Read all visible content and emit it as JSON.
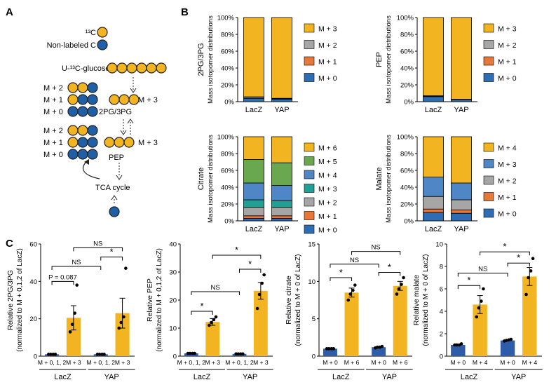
{
  "colors": {
    "yellow": "#F2B420",
    "blue": "#1F5FA6",
    "gray": "#A6A6A6",
    "orange": "#E8773A",
    "lightblue": "#4F86C6",
    "teal": "#1FA196",
    "green": "#6AA84F",
    "tile_blue": "#2E6DB4",
    "bar_blue": "#2E5CA8"
  },
  "panel_a": {
    "label": "A",
    "legend_c13": "¹³C",
    "legend_nonlabeled": "Non-labeled C",
    "glucose_label": "U-¹³C-glucose",
    "pg_label": "2PG/3PG",
    "pep_label": "PEP",
    "tca_label": "TCA cycle",
    "m2": "M + 2",
    "m1": "M + 1",
    "m0": "M + 0",
    "m3": "M + 3"
  },
  "panel_b_label": "B",
  "panel_c_label": "C",
  "stacked": [
    {
      "name": "2PG/3PG",
      "ylabel": "Mass isotopomer distributions",
      "categories": [
        "LacZ",
        "YAP"
      ],
      "yticks": [
        "0%",
        "20%",
        "40%",
        "60%",
        "80%",
        "100%"
      ],
      "series": [
        {
          "name": "M + 0",
          "color": "#2E6DB4",
          "values": [
            4,
            3
          ]
        },
        {
          "name": "M + 1",
          "color": "#E8773A",
          "values": [
            0.3,
            0.3
          ]
        },
        {
          "name": "M + 2",
          "color": "#A6A6A6",
          "values": [
            1.5,
            0.7
          ]
        },
        {
          "name": "M + 3",
          "color": "#F2B420",
          "values": [
            94.2,
            96
          ]
        }
      ]
    },
    {
      "name": "PEP",
      "ylabel": "Mass isotopomer distributions",
      "categories": [
        "LacZ",
        "YAP"
      ],
      "yticks": [
        "0%",
        "20%",
        "40%",
        "60%",
        "80%",
        "100%"
      ],
      "series": [
        {
          "name": "M + 0",
          "color": "#2E6DB4",
          "values": [
            6,
            2.5
          ]
        },
        {
          "name": "M + 1",
          "color": "#E8773A",
          "values": [
            0.3,
            0.2
          ]
        },
        {
          "name": "M + 2",
          "color": "#A6A6A6",
          "values": [
            0.7,
            0.3
          ]
        },
        {
          "name": "M + 3",
          "color": "#F2B420",
          "values": [
            93,
            97
          ]
        }
      ]
    },
    {
      "name": "Citrate",
      "ylabel": "Mass isotopomer distributions",
      "categories": [
        "LacZ",
        "YAP"
      ],
      "yticks": [
        "0%",
        "20%",
        "40%",
        "60%",
        "80%",
        "100%"
      ],
      "series": [
        {
          "name": "M + 0",
          "color": "#2E6DB4",
          "values": [
            3,
            3
          ]
        },
        {
          "name": "M + 1",
          "color": "#E8773A",
          "values": [
            3,
            3
          ]
        },
        {
          "name": "M + 2",
          "color": "#A6A6A6",
          "values": [
            10,
            10
          ]
        },
        {
          "name": "M + 3",
          "color": "#1FA196",
          "values": [
            9,
            8
          ]
        },
        {
          "name": "M + 4",
          "color": "#4F86C6",
          "values": [
            20,
            18
          ]
        },
        {
          "name": "M + 5",
          "color": "#6AA84F",
          "values": [
            28,
            27
          ]
        },
        {
          "name": "M + 6",
          "color": "#F2B420",
          "values": [
            27,
            31
          ]
        }
      ]
    },
    {
      "name": "Malate",
      "ylabel": "Mass isotopomer distributions",
      "categories": [
        "LacZ",
        "YAP"
      ],
      "yticks": [
        "0%",
        "20%",
        "40%",
        "60%",
        "80%",
        "100%"
      ],
      "series": [
        {
          "name": "M + 0",
          "color": "#2E6DB4",
          "values": [
            10,
            9
          ]
        },
        {
          "name": "M + 1",
          "color": "#E8773A",
          "values": [
            4,
            4
          ]
        },
        {
          "name": "M + 2",
          "color": "#A6A6A6",
          "values": [
            15,
            12
          ]
        },
        {
          "name": "M + 3",
          "color": "#4F86C6",
          "values": [
            23,
            20
          ]
        },
        {
          "name": "M + 4",
          "color": "#F2B420",
          "values": [
            48,
            55
          ]
        }
      ]
    }
  ],
  "chart_data": [
    {
      "type": "bar",
      "title": "",
      "ylabel1": "Relative 2PG/3PG",
      "ylabel2": "(normalized to M + 0,1,2 of LacZ)",
      "ylim": [
        0,
        60
      ],
      "yticks": [
        0,
        20,
        40,
        60
      ],
      "categories": [
        "M + 0, 1, 2",
        "M + 3",
        "M + 0, 1, 2",
        "M + 3"
      ],
      "groups": [
        "LacZ",
        "YAP"
      ],
      "values": [
        1,
        20.5,
        1,
        23
      ],
      "errors": [
        0.2,
        6.5,
        0.2,
        8
      ],
      "colors": [
        "#2E5CA8",
        "#F2B420",
        "#2E5CA8",
        "#F2B420"
      ],
      "points": [
        [
          1,
          1,
          1,
          1
        ],
        [
          13,
          17,
          23,
          38
        ],
        [
          1,
          1,
          1,
          1
        ],
        [
          15,
          18,
          21,
          47
        ]
      ],
      "comparisons": [
        {
          "from": 0,
          "to": 1,
          "level": 40,
          "label": "P = 0.087"
        },
        {
          "from": 0,
          "to": 2,
          "level": 48,
          "label": "NS"
        },
        {
          "from": 2,
          "to": 3,
          "level": 53,
          "label": "*"
        },
        {
          "from": 1,
          "to": 3,
          "level": 58,
          "label": "NS"
        }
      ]
    },
    {
      "type": "bar",
      "title": "",
      "ylabel1": "Relative PEP",
      "ylabel2": "(normalized to M + 0,1,2 of LacZ)",
      "ylim": [
        0,
        40
      ],
      "yticks": [
        0,
        10,
        20,
        30,
        40
      ],
      "categories": [
        "M + 0, 1, 2",
        "M + 3",
        "M + 0, 1, 2",
        "M + 3"
      ],
      "groups": [
        "LacZ",
        "YAP"
      ],
      "values": [
        1,
        12.2,
        0.8,
        23.3
      ],
      "errors": [
        0.1,
        1.2,
        0.1,
        3
      ],
      "colors": [
        "#2E5CA8",
        "#F2B420",
        "#2E5CA8",
        "#F2B420"
      ],
      "points": [
        [
          1,
          1,
          1,
          1
        ],
        [
          11,
          12,
          13,
          14
        ],
        [
          0.8,
          0.8,
          0.8,
          0.8
        ],
        [
          17,
          22,
          26,
          29
        ]
      ],
      "comparisons": [
        {
          "from": 0,
          "to": 1,
          "level": 16,
          "label": "*"
        },
        {
          "from": 0,
          "to": 2,
          "level": 23,
          "label": "NS"
        },
        {
          "from": 2,
          "to": 3,
          "level": 31,
          "label": "*"
        },
        {
          "from": 1,
          "to": 3,
          "level": 36,
          "label": "*"
        }
      ]
    },
    {
      "type": "bar",
      "title": "",
      "ylabel1": "Relative citrate",
      "ylabel2": "(normalized to M + 0 of LacZ)",
      "ylim": [
        0,
        15
      ],
      "yticks": [
        0,
        5,
        10,
        15
      ],
      "categories": [
        "M + 0",
        "M + 6",
        "M + 0",
        "M + 6"
      ],
      "groups": [
        "LacZ",
        "YAP"
      ],
      "values": [
        1,
        8.5,
        1.2,
        9.4
      ],
      "errors": [
        0.1,
        0.6,
        0.1,
        0.6
      ],
      "colors": [
        "#2E5CA8",
        "#F2B420",
        "#2E5CA8",
        "#F2B420"
      ],
      "points": [
        [
          1,
          1,
          1,
          1
        ],
        [
          7.5,
          8.3,
          8.8,
          9.5
        ],
        [
          1.1,
          1.2,
          1.2,
          1.3
        ],
        [
          8.3,
          9.0,
          9.6,
          10.5
        ]
      ],
      "comparisons": [
        {
          "from": 0,
          "to": 1,
          "level": 10.5,
          "label": "*"
        },
        {
          "from": 2,
          "to": 3,
          "level": 11.2,
          "label": "*"
        },
        {
          "from": 0,
          "to": 2,
          "level": 12.3,
          "label": "NS"
        },
        {
          "from": 1,
          "to": 3,
          "level": 14,
          "label": "NS"
        }
      ]
    },
    {
      "type": "bar",
      "title": "",
      "ylabel1": "Relative malate",
      "ylabel2": "(normalized to M + 0 of LacZ)",
      "ylim": [
        0,
        10
      ],
      "yticks": [
        0,
        2,
        4,
        6,
        8,
        10
      ],
      "categories": [
        "M + 0",
        "M + 4",
        "M + 0",
        "M + 4"
      ],
      "groups": [
        "LacZ",
        "YAP"
      ],
      "values": [
        1,
        4.6,
        1.4,
        7.1
      ],
      "errors": [
        0.05,
        0.8,
        0.05,
        0.8
      ],
      "colors": [
        "#2E5CA8",
        "#F2B420",
        "#2E5CA8",
        "#F2B420"
      ],
      "points": [
        [
          1,
          1,
          1,
          1.1
        ],
        [
          3.5,
          4.3,
          4.9,
          6.0
        ],
        [
          1.35,
          1.4,
          1.45,
          1.5
        ],
        [
          5.5,
          7.0,
          7.6,
          8.7
        ]
      ],
      "comparisons": [
        {
          "from": 0,
          "to": 1,
          "level": 6.3,
          "label": "*"
        },
        {
          "from": 0,
          "to": 2,
          "level": 7.4,
          "label": "NS"
        },
        {
          "from": 2,
          "to": 3,
          "level": 8.3,
          "label": "*"
        },
        {
          "from": 1,
          "to": 3,
          "level": 9.3,
          "label": "*"
        }
      ]
    }
  ]
}
